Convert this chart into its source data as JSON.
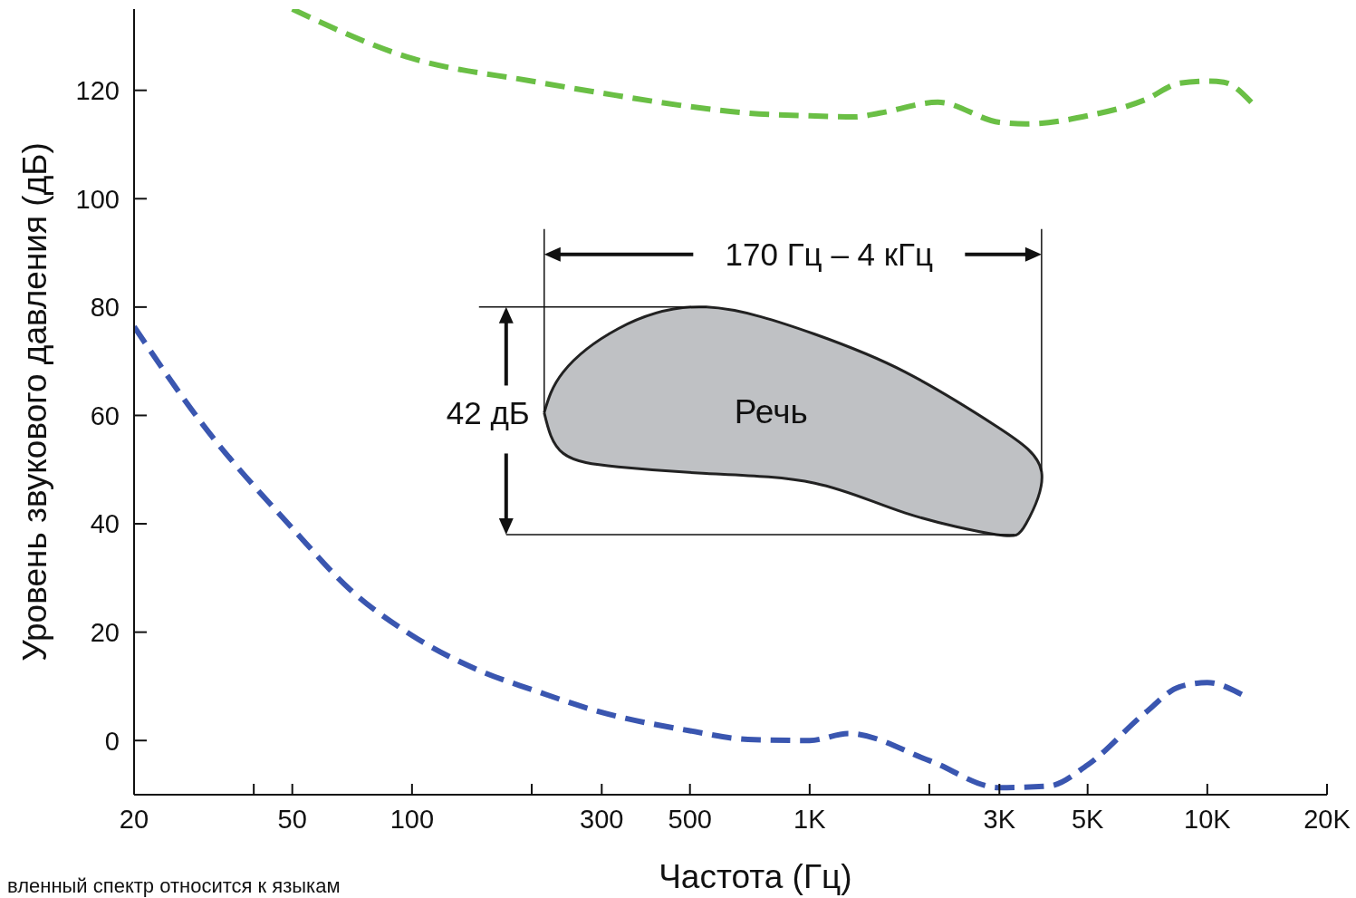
{
  "chart_data": {
    "type": "line",
    "xlabel": "Частота (Гц)",
    "ylabel": "Уровень звукового давления (дБ)",
    "log": "x",
    "xlim": [
      20,
      20000
    ],
    "ylim": [
      -10,
      135
    ],
    "xticks": [
      20,
      {
        "value": 40,
        "label": null
      },
      50,
      100,
      {
        "value": 200,
        "label": null
      },
      300,
      500,
      {
        "value": 1000,
        "label": "1K"
      },
      {
        "value": 2000,
        "label": null
      },
      {
        "value": 3000,
        "label": "3K"
      },
      {
        "value": 5000,
        "label": "5K"
      },
      {
        "value": 10000,
        "label": "10K"
      },
      {
        "value": 20000,
        "label": "20K"
      }
    ],
    "yticks": [
      0,
      20,
      40,
      60,
      80,
      100,
      120
    ],
    "line_style": "dashed",
    "marker": "none",
    "series": [
      {
        "color": "#6abf45",
        "x": [
          50,
          100,
          200,
          300,
          500,
          700,
          1000,
          1300,
          1500,
          2100,
          3000,
          3500,
          5000,
          7000,
          8500,
          10000,
          11000,
          12900
        ],
        "values": [
          135,
          125.9,
          121.7,
          119.5,
          117,
          115.8,
          115.3,
          115.1,
          115.8,
          117.8,
          114.1,
          113.8,
          115.3,
          118.3,
          121.3,
          121.7,
          121.5,
          117.8
        ]
      },
      {
        "color": "#3a56b0",
        "x": [
          20,
          30,
          50,
          70,
          100,
          150,
          200,
          300,
          500,
          700,
          1000,
          1250,
          2000,
          3000,
          4000,
          5000,
          7000,
          8500,
          10000,
          12200
        ],
        "values": [
          76.4,
          58,
          39.2,
          27.8,
          19.4,
          12.7,
          9.4,
          5.2,
          1.8,
          0.2,
          0,
          1.3,
          -3.7,
          -8.7,
          -8.4,
          -4.5,
          5.2,
          9.9,
          10.7,
          8.5
        ]
      },
      {
        "type": "area",
        "color": "#bfc1c4",
        "line_style": "solid",
        "x": [
          215,
          240,
          330,
          550,
          1030,
          1740,
          2950,
          3830,
          3500,
          2950,
          1740,
          1030,
          550,
          330,
          240,
          215
        ],
        "values": [
          60.5,
          68,
          76,
          80,
          75,
          68,
          58,
          49.6,
          40,
          38,
          42,
          47.5,
          49.3,
          50.5,
          53,
          60.5
        ]
      }
    ],
    "annotations": [
      "170 Гц – 4 кГц",
      "42 дБ",
      "Речь",
      "вленный спектр относится к языкам"
    ]
  }
}
